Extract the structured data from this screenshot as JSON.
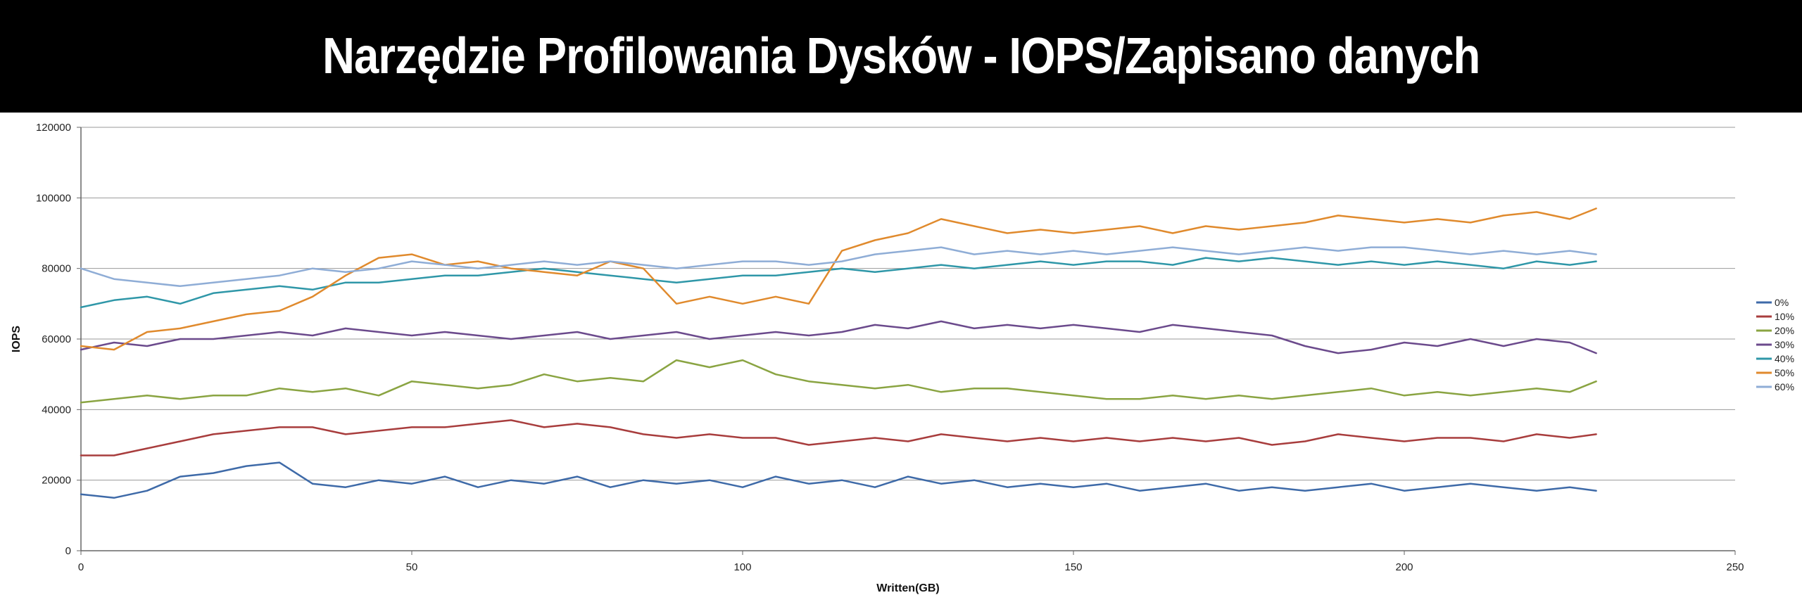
{
  "title": "Narzędzie Profilowania Dysków - IOPS/Zapisano danych",
  "chart_data": {
    "type": "line",
    "xlabel": "Written(GB)",
    "ylabel": "IOPS",
    "xlim": [
      0,
      250
    ],
    "ylim": [
      0,
      120000
    ],
    "x_ticks": [
      0,
      50,
      100,
      150,
      200,
      250
    ],
    "y_ticks": [
      0,
      20000,
      40000,
      60000,
      80000,
      100000,
      120000
    ],
    "x_tick_labels": [
      "0",
      "50",
      "100",
      "150",
      "200",
      "250"
    ],
    "y_tick_labels": [
      "0",
      "20000",
      "40000",
      "60000",
      "80000",
      "100000",
      "120000"
    ],
    "grid": "horizontal",
    "legend_position": "right",
    "x": [
      0,
      5,
      10,
      15,
      20,
      25,
      30,
      35,
      40,
      45,
      50,
      55,
      60,
      65,
      70,
      75,
      80,
      85,
      90,
      95,
      100,
      105,
      110,
      115,
      120,
      125,
      130,
      135,
      140,
      145,
      150,
      155,
      160,
      165,
      170,
      175,
      180,
      185,
      190,
      195,
      200,
      205,
      210,
      215,
      220,
      225,
      229
    ],
    "series": [
      {
        "name": "0%",
        "color": "#3e6aa8",
        "values": [
          16000,
          15000,
          17000,
          21000,
          22000,
          24000,
          25000,
          19000,
          18000,
          20000,
          19000,
          21000,
          18000,
          20000,
          19000,
          21000,
          18000,
          20000,
          19000,
          20000,
          18000,
          21000,
          19000,
          20000,
          18000,
          21000,
          19000,
          20000,
          18000,
          19000,
          18000,
          19000,
          17000,
          18000,
          19000,
          17000,
          18000,
          17000,
          18000,
          19000,
          17000,
          18000,
          19000,
          18000,
          17000,
          18000,
          17000
        ]
      },
      {
        "name": "10%",
        "color": "#a83d3d",
        "values": [
          27000,
          27000,
          29000,
          31000,
          33000,
          34000,
          35000,
          35000,
          33000,
          34000,
          35000,
          35000,
          36000,
          37000,
          35000,
          36000,
          35000,
          33000,
          32000,
          33000,
          32000,
          32000,
          30000,
          31000,
          32000,
          31000,
          33000,
          32000,
          31000,
          32000,
          31000,
          32000,
          31000,
          32000,
          31000,
          32000,
          30000,
          31000,
          33000,
          32000,
          31000,
          32000,
          32000,
          31000,
          33000,
          32000,
          33000
        ]
      },
      {
        "name": "20%",
        "color": "#8aa442",
        "values": [
          42000,
          43000,
          44000,
          43000,
          44000,
          44000,
          46000,
          45000,
          46000,
          44000,
          48000,
          47000,
          46000,
          47000,
          50000,
          48000,
          49000,
          48000,
          54000,
          52000,
          54000,
          50000,
          48000,
          47000,
          46000,
          47000,
          45000,
          46000,
          46000,
          45000,
          44000,
          43000,
          43000,
          44000,
          43000,
          44000,
          43000,
          44000,
          45000,
          46000,
          44000,
          45000,
          44000,
          45000,
          46000,
          45000,
          48000
        ]
      },
      {
        "name": "30%",
        "color": "#6b4a8c",
        "values": [
          57000,
          59000,
          58000,
          60000,
          60000,
          61000,
          62000,
          61000,
          63000,
          62000,
          61000,
          62000,
          61000,
          60000,
          61000,
          62000,
          60000,
          61000,
          62000,
          60000,
          61000,
          62000,
          61000,
          62000,
          64000,
          63000,
          65000,
          63000,
          64000,
          63000,
          64000,
          63000,
          62000,
          64000,
          63000,
          62000,
          61000,
          58000,
          56000,
          57000,
          59000,
          58000,
          60000,
          58000,
          60000,
          59000,
          56000
        ]
      },
      {
        "name": "40%",
        "color": "#2f97a8",
        "values": [
          69000,
          71000,
          72000,
          70000,
          73000,
          74000,
          75000,
          74000,
          76000,
          76000,
          77000,
          78000,
          78000,
          79000,
          80000,
          79000,
          78000,
          77000,
          76000,
          77000,
          78000,
          78000,
          79000,
          80000,
          79000,
          80000,
          81000,
          80000,
          81000,
          82000,
          81000,
          82000,
          82000,
          81000,
          83000,
          82000,
          83000,
          82000,
          81000,
          82000,
          81000,
          82000,
          81000,
          80000,
          82000,
          81000,
          82000
        ]
      },
      {
        "name": "50%",
        "color": "#e08a2d",
        "values": [
          58000,
          57000,
          62000,
          63000,
          65000,
          67000,
          68000,
          72000,
          78000,
          83000,
          84000,
          81000,
          82000,
          80000,
          79000,
          78000,
          82000,
          80000,
          70000,
          72000,
          70000,
          72000,
          70000,
          85000,
          88000,
          90000,
          94000,
          92000,
          90000,
          91000,
          90000,
          91000,
          92000,
          90000,
          92000,
          91000,
          92000,
          93000,
          95000,
          94000,
          93000,
          94000,
          93000,
          95000,
          96000,
          94000,
          97000
        ]
      },
      {
        "name": "60%",
        "color": "#8fadd6",
        "values": [
          80000,
          77000,
          76000,
          75000,
          76000,
          77000,
          78000,
          80000,
          79000,
          80000,
          82000,
          81000,
          80000,
          81000,
          82000,
          81000,
          82000,
          81000,
          80000,
          81000,
          82000,
          82000,
          81000,
          82000,
          84000,
          85000,
          86000,
          84000,
          85000,
          84000,
          85000,
          84000,
          85000,
          86000,
          85000,
          84000,
          85000,
          86000,
          85000,
          86000,
          86000,
          85000,
          84000,
          85000,
          84000,
          85000,
          84000
        ]
      }
    ]
  }
}
